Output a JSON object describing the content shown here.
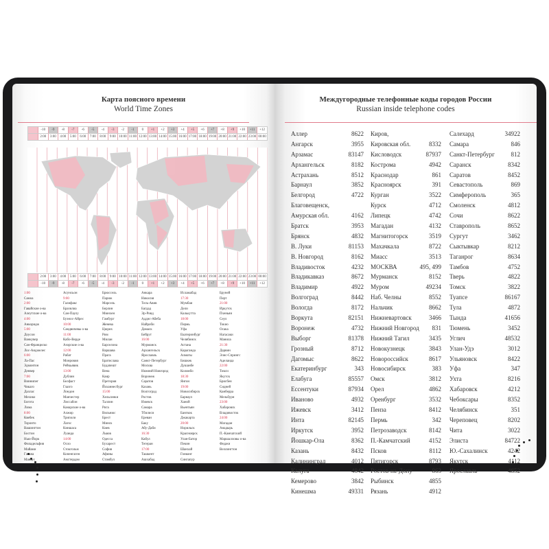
{
  "left_page": {
    "title": "Карта поясного времени",
    "subtitle": "World Time Zones",
    "accent_color": "#e07a8a",
    "timezones": [
      {
        "offset": "-10",
        "time": "2:00",
        "shade": "none"
      },
      {
        "offset": "-9",
        "time": "3:00",
        "shade": "gray"
      },
      {
        "offset": "-8",
        "time": "4:00",
        "shade": "none"
      },
      {
        "offset": "-7",
        "time": "5:00",
        "shade": "pink"
      },
      {
        "offset": "-6",
        "time": "6:00",
        "shade": "none"
      },
      {
        "offset": "-5",
        "time": "7:00",
        "shade": "gray"
      },
      {
        "offset": "-4",
        "time": "8:00",
        "shade": "none"
      },
      {
        "offset": "-3",
        "time": "9:00",
        "shade": "pink"
      },
      {
        "offset": "-2",
        "time": "10:00",
        "shade": "none"
      },
      {
        "offset": "-1",
        "time": "11:00",
        "shade": "gray"
      },
      {
        "offset": "0",
        "time": "12:00",
        "shade": "none"
      },
      {
        "offset": "+1",
        "time": "13:00",
        "shade": "pink"
      },
      {
        "offset": "+2",
        "time": "14:00",
        "shade": "none"
      },
      {
        "offset": "+3",
        "time": "15:00",
        "shade": "gray"
      },
      {
        "offset": "+4",
        "time": "16:00",
        "shade": "none"
      },
      {
        "offset": "+5",
        "time": "17:00",
        "shade": "pink"
      },
      {
        "offset": "+6",
        "time": "18:00",
        "shade": "none"
      },
      {
        "offset": "+7",
        "time": "19:00",
        "shade": "gray"
      },
      {
        "offset": "+8",
        "time": "20:00",
        "shade": "none"
      },
      {
        "offset": "+9",
        "time": "21:00",
        "shade": "pink"
      },
      {
        "offset": "+10",
        "time": "22:00",
        "shade": "none"
      },
      {
        "offset": "+11",
        "time": "23:00",
        "shade": "gray"
      },
      {
        "offset": "+12",
        "time": "00:00",
        "shade": "none"
      }
    ],
    "city_columns": [
      [
        "1:00",
        "Самоа",
        "2:00",
        "Гавайские о-ва",
        "Алеутские о-ва",
        "4:00",
        "Анкоридж",
        "5:00",
        "Доусон",
        "Ванкувер",
        "Сан-Франциско",
        "Лос-Анджелес",
        "6:00",
        "Ла-Пас",
        "Эдмонтон",
        "Денвер",
        "7:00",
        "Виннипег",
        "Чикаго",
        "Даллас",
        "Мехико",
        "Богота",
        "Лима",
        "8:00",
        "Квебек",
        "Торонто",
        "Вашингтон",
        "Бостон",
        "Нью-Йорк",
        "Филадельфия",
        "Майами",
        "Гавана",
        "Манаус"
      ],
      [
        "Асунсьон",
        "9:00",
        "Галифакс",
        "Бразилиа",
        "Сан-Паулу",
        "Буэнос-Айрес",
        "10:00",
        "Сандвичевы о-ва",
        "11:00",
        "Кабо-Верде",
        "Азорские о-ва",
        "12:00",
        "Рабат",
        "Монровия",
        "Рейкьявик",
        "13:00",
        "Дублин",
        "Белфаст",
        "Глазго",
        "Лондон",
        "Манчестер",
        "Лиссабон",
        "Канарские о-ва",
        "Алжир",
        "Триполи",
        "Лагос",
        "Киншаса",
        "Луанда",
        "14:00",
        "Осло",
        "Стокгольм",
        "Копенгаген",
        "Амстердам"
      ],
      [
        "Брюссель",
        "Париж",
        "Марсель",
        "Берлин",
        "Мюнхен",
        "Гамбург",
        "Женева",
        "Цюрих",
        "Рим",
        "Милан",
        "Барселона",
        "Варшава",
        "Прага",
        "Братислава",
        "Будапешт",
        "Вена",
        "Каир",
        "Претория",
        "Йоханнесбург",
        "15:00",
        "Хельсинки",
        "Таллин",
        "Рига",
        "Вильнюс",
        "Брест",
        "Минск",
        "Киев",
        "Львов",
        "Одесса",
        "Бухарест",
        "София",
        "Афины",
        "Стамбул"
      ],
      [
        "Анкара",
        "Никосия",
        "Тель-Авив",
        "Багдад",
        "Эр-Рияд",
        "Аддис-Абеба",
        "Найроби",
        "Дамаск",
        "Бейрут",
        "16:00",
        "Мурманск",
        "Архангельск",
        "Ярославль",
        "Санкт-Петербург",
        "Москва",
        "Нижний Новгород",
        "Воронеж",
        "Саратов",
        "Казань",
        "Волгоград",
        "Ростов",
        "Ижевск",
        "Самара",
        "Тбилиси",
        "Ереван",
        "Баку",
        "Абу-Даби",
        "16:30",
        "Кабул",
        "Тегеран",
        "17:00",
        "Ташкент",
        "Ашхабад"
      ],
      [
        "Исламабад",
        "17:30",
        "Мумбаи",
        "Дели",
        "Калькутта",
        "18:00",
        "Пермь",
        "Уфа",
        "Екатеринбург",
        "Челябинск",
        "Астана",
        "Караганда",
        "Алматы",
        "Бишкек",
        "Душанбе",
        "Коломбо",
        "18:30",
        "Янгон",
        "19:00",
        "Новосибирск",
        "Барнаул",
        "Ханой",
        "Вьентьян",
        "Бангкок",
        "Джакарта",
        "20:00",
        "Норильск",
        "Красноярск",
        "Улан-Батор",
        "Пекин",
        "Шанхай",
        "Гонконг",
        "Сингапур"
      ],
      [
        "Бруней",
        "Перт",
        "21:00",
        "Иркутск",
        "Пхеньян",
        "Сеул",
        "Токио",
        "Осака",
        "Нагасаки",
        "Манила",
        "21:30",
        "Дарвин",
        "Элис-Спрингс",
        "Аделаида",
        "22:00",
        "Тикси",
        "Якутск",
        "Брисбен",
        "Сидней",
        "Канберра",
        "Мельбурн",
        "23:00",
        "Хабаровск",
        "Владивосток",
        "24:00",
        "Магадан",
        "Анадырь",
        "П.-Камчатский",
        "Маршалловы о-ва",
        "Фиджи",
        "Веллингтон"
      ]
    ]
  },
  "right_page": {
    "title": "Междугородные телефонные коды городов России",
    "subtitle": "Russian inside telephone codes",
    "columns": [
      [
        [
          "Аллер",
          "8622"
        ],
        [
          "Ангарск",
          "3955"
        ],
        [
          "Арзамас",
          "83147"
        ],
        [
          "Архангельск",
          "8182"
        ],
        [
          "Астрахань",
          "8512"
        ],
        [
          "Барнаул",
          "3852"
        ],
        [
          "Белгород",
          "4722"
        ],
        [
          "Благовещенск,",
          ""
        ],
        [
          "Амурская обл.",
          "4162"
        ],
        [
          "Братск",
          "3953"
        ],
        [
          "Брянск",
          "4832"
        ],
        [
          "В. Луки",
          "81153"
        ],
        [
          "В. Новгород",
          "8162"
        ],
        [
          "Владивосток",
          "4232"
        ],
        [
          "Владикавказ",
          "8672"
        ],
        [
          "Владимир",
          "4922"
        ],
        [
          "Волгоград",
          "8442"
        ],
        [
          "Вологда",
          "8172"
        ],
        [
          "Воркута",
          "82151"
        ],
        [
          "Воронеж",
          "4732"
        ],
        [
          "Выборг",
          "81378"
        ],
        [
          "Грозный",
          "8712"
        ],
        [
          "Дагомыс",
          "8622"
        ],
        [
          "Екатеринбург",
          "343"
        ],
        [
          "Елабуга",
          "85557"
        ],
        [
          "Ессентуки",
          "87934"
        ],
        [
          "Иваново",
          "4932"
        ],
        [
          "Ижевск",
          "3412"
        ],
        [
          "Инта",
          "82145"
        ],
        [
          "Иркутск",
          "3952"
        ],
        [
          "Йошкар-Ола",
          "8362"
        ],
        [
          "Казань",
          "8432"
        ],
        [
          "Калининград",
          "4012"
        ],
        [
          "Калуга",
          "4842"
        ],
        [
          "Кемерово",
          "3842"
        ],
        [
          "Кинешма",
          "49331"
        ]
      ],
      [
        [
          "Киров,",
          ""
        ],
        [
          "Кировская обл.",
          "8332"
        ],
        [
          "Кисловодск",
          "87937"
        ],
        [
          "Кострома",
          "4942"
        ],
        [
          "Краснодар",
          "861"
        ],
        [
          "Красноярск",
          "391"
        ],
        [
          "Курган",
          "3522"
        ],
        [
          "Курск",
          "4712"
        ],
        [
          "Липецк",
          "4742"
        ],
        [
          "Магадан",
          "4132"
        ],
        [
          "Магнитогорск",
          "3519"
        ],
        [
          "Махачкала",
          "8722"
        ],
        [
          "Миасс",
          "3513"
        ],
        [
          "МОСКВА",
          "495, 499"
        ],
        [
          "Мурманск",
          "8152"
        ],
        [
          "Муром",
          "49234"
        ],
        [
          "Наб. Челны",
          "8552"
        ],
        [
          "Нальчик",
          "8662"
        ],
        [
          "Нижневартовск",
          "3466"
        ],
        [
          "Нижний Новгород",
          "831"
        ],
        [
          "Нижний Тагил",
          "3435"
        ],
        [
          "Новокузнецк",
          "3843"
        ],
        [
          "Новороссийск",
          "8617"
        ],
        [
          "Новосибирск",
          "383"
        ],
        [
          "Омск",
          "3812"
        ],
        [
          "Орел",
          "4862"
        ],
        [
          "Оренбург",
          "3532"
        ],
        [
          "Пенза",
          "8412"
        ],
        [
          "Пермь",
          "342"
        ],
        [
          "Петрозаводск",
          "8142"
        ],
        [
          "П.-Камчатский",
          "4152"
        ],
        [
          "Псков",
          "8112"
        ],
        [
          "Пятигорск",
          "8793"
        ],
        [
          "Ростов-на-Дону",
          "863"
        ],
        [
          "Рыбинск",
          "4855"
        ],
        [
          "Рязань",
          "4912"
        ]
      ],
      [
        [
          "Салехард",
          "34922"
        ],
        [
          "Самара",
          "846"
        ],
        [
          "Санкт-Петербург",
          "812"
        ],
        [
          "Саранск",
          "8342"
        ],
        [
          "Саратов",
          "8452"
        ],
        [
          "Севастополь",
          "869"
        ],
        [
          "Симферополь",
          "365"
        ],
        [
          "Смоленск",
          "4812"
        ],
        [
          "Сочи",
          "8622"
        ],
        [
          "Ставрополь",
          "8652"
        ],
        [
          "Сургут",
          "3462"
        ],
        [
          "Сыктывкар",
          "8212"
        ],
        [
          "Таганрог",
          "8634"
        ],
        [
          "Тамбов",
          "4752"
        ],
        [
          "Тверь",
          "4822"
        ],
        [
          "Томск",
          "3822"
        ],
        [
          "Туапсе",
          "86167"
        ],
        [
          "Тула",
          "4872"
        ],
        [
          "Тында",
          "41656"
        ],
        [
          "Тюмень",
          "3452"
        ],
        [
          "Углич",
          "48532"
        ],
        [
          "Улан-Удэ",
          "3012"
        ],
        [
          "Ульяновск",
          "8422"
        ],
        [
          "Уфа",
          "347"
        ],
        [
          "Ухта",
          "8216"
        ],
        [
          "Хабаровск",
          "4212"
        ],
        [
          "Чебоксары",
          "8352"
        ],
        [
          "Челябинск",
          "351"
        ],
        [
          "Череповец",
          "8202"
        ],
        [
          "Чита",
          "3022"
        ],
        [
          "Элиста",
          "84722"
        ],
        [
          "Ю.-Сахалинск",
          "4242"
        ],
        [
          "Якутск",
          "4112"
        ],
        [
          "Ярославль",
          "4852"
        ]
      ]
    ]
  }
}
